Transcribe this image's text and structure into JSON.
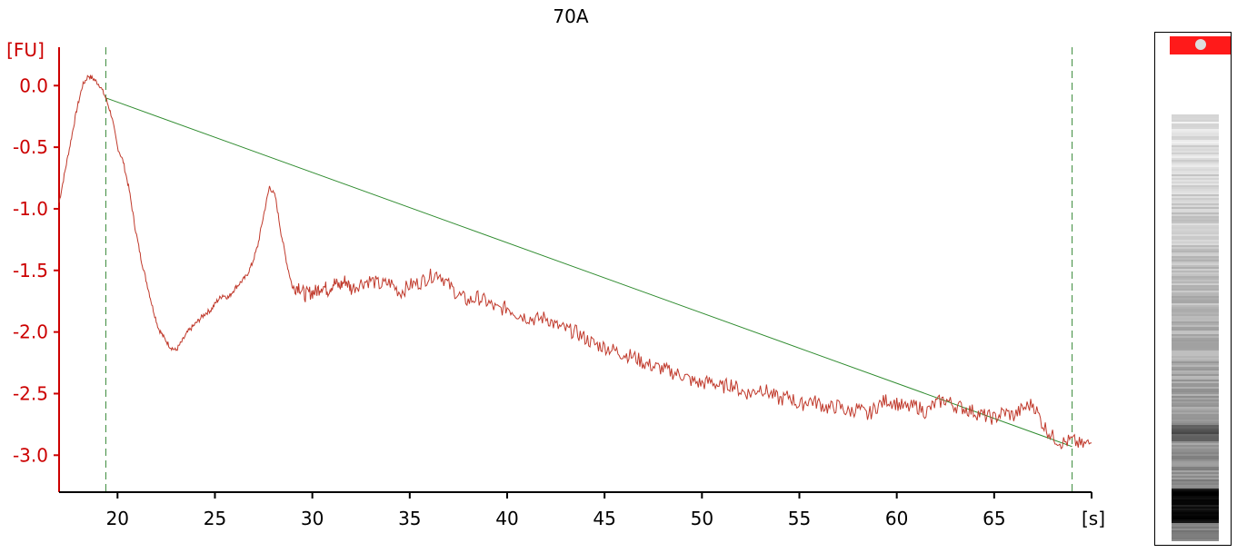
{
  "chart_data": {
    "type": "line",
    "title": "70A",
    "ylabel": "[FU]",
    "xlabel": "[s]",
    "xlim": [
      17,
      70
    ],
    "ylim": [
      -3.3,
      0.4
    ],
    "xticks": [
      "20",
      "25",
      "30",
      "35",
      "40",
      "45",
      "50",
      "55",
      "60",
      "65"
    ],
    "yticks": [
      "0.0",
      "-0.5",
      "-1.0",
      "-1.5",
      "-2.0",
      "-2.5",
      "-3.0"
    ],
    "grid": false,
    "colors": {
      "trace": "#c0392b",
      "axis": "#cc0000",
      "baseline": "#2e8b2e",
      "marker_line": "#3a8a3a"
    },
    "series": [
      {
        "name": "",
        "x": [
          17.0,
          17.3,
          17.6,
          17.9,
          18.2,
          18.5,
          18.8,
          19.1,
          19.4,
          19.7,
          20.0,
          20.3,
          20.6,
          20.9,
          21.2,
          21.5,
          21.8,
          22.1,
          22.4,
          22.7,
          23.0,
          23.3,
          23.6,
          23.9,
          24.2,
          24.5,
          24.8,
          25.1,
          25.4,
          25.7,
          26.0,
          26.3,
          26.6,
          26.9,
          27.2,
          27.5,
          27.8,
          28.1,
          28.4,
          28.7,
          29.0,
          29.3,
          29.6,
          29.9,
          30.2,
          30.5,
          30.8,
          31.1,
          31.4,
          31.7,
          32.0,
          32.5,
          33.0,
          33.5,
          34.0,
          34.5,
          35.0,
          35.5,
          36.0,
          36.5,
          37.0,
          37.5,
          38.0,
          38.5,
          39.0,
          39.5,
          40.0,
          40.5,
          41.0,
          41.5,
          42.0,
          42.5,
          43.0,
          43.5,
          44.0,
          44.5,
          45.0,
          45.5,
          46.0,
          46.5,
          47.0,
          47.5,
          48.0,
          48.5,
          49.0,
          49.5,
          50.0,
          50.5,
          51.0,
          51.5,
          52.0,
          52.5,
          53.0,
          53.5,
          54.0,
          54.5,
          55.0,
          55.5,
          56.0,
          56.5,
          57.0,
          57.5,
          58.0,
          58.5,
          59.0,
          59.5,
          60.0,
          60.5,
          61.0,
          61.5,
          62.0,
          62.5,
          63.0,
          63.5,
          64.0,
          64.5,
          65.0,
          65.5,
          66.0,
          66.5,
          67.0,
          67.5,
          68.0,
          68.5,
          69.0,
          69.5,
          70.0
        ],
        "y": [
          -0.95,
          -0.7,
          -0.45,
          -0.2,
          0.0,
          0.08,
          0.05,
          0.0,
          -0.1,
          -0.25,
          -0.5,
          -0.62,
          -0.85,
          -1.15,
          -1.4,
          -1.6,
          -1.8,
          -1.97,
          -2.05,
          -2.12,
          -2.15,
          -2.08,
          -2.0,
          -1.95,
          -1.9,
          -1.85,
          -1.82,
          -1.75,
          -1.7,
          -1.72,
          -1.65,
          -1.6,
          -1.55,
          -1.45,
          -1.3,
          -1.05,
          -0.82,
          -0.9,
          -1.2,
          -1.45,
          -1.65,
          -1.62,
          -1.7,
          -1.68,
          -1.67,
          -1.62,
          -1.66,
          -1.6,
          -1.63,
          -1.58,
          -1.65,
          -1.6,
          -1.58,
          -1.62,
          -1.6,
          -1.68,
          -1.62,
          -1.6,
          -1.55,
          -1.52,
          -1.62,
          -1.7,
          -1.75,
          -1.72,
          -1.76,
          -1.82,
          -1.8,
          -1.85,
          -1.88,
          -1.9,
          -1.88,
          -1.95,
          -1.98,
          -2.0,
          -2.05,
          -2.1,
          -2.12,
          -2.15,
          -2.18,
          -2.2,
          -2.25,
          -2.28,
          -2.3,
          -2.33,
          -2.35,
          -2.4,
          -2.42,
          -2.4,
          -2.45,
          -2.42,
          -2.48,
          -2.5,
          -2.45,
          -2.5,
          -2.55,
          -2.52,
          -2.6,
          -2.55,
          -2.58,
          -2.62,
          -2.6,
          -2.65,
          -2.62,
          -2.68,
          -2.6,
          -2.55,
          -2.58,
          -2.62,
          -2.6,
          -2.65,
          -2.58,
          -2.55,
          -2.6,
          -2.62,
          -2.65,
          -2.68,
          -2.7,
          -2.65,
          -2.68,
          -2.62,
          -2.58,
          -2.75,
          -2.85,
          -2.9,
          -2.88,
          -2.92,
          -2.9
        ]
      }
    ],
    "baseline": {
      "x": [
        19.4,
        69.0
      ],
      "y": [
        -0.1,
        -2.93
      ]
    },
    "markers": [
      19.4,
      69.0
    ]
  }
}
